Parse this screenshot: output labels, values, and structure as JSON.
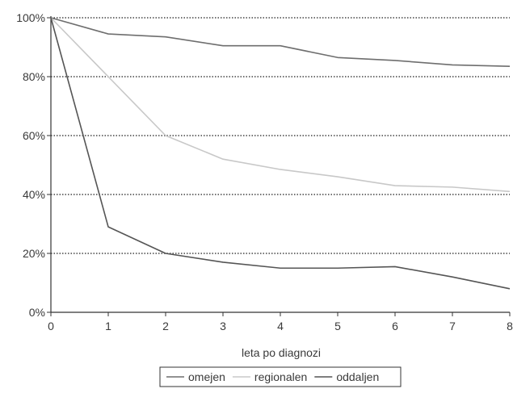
{
  "chart_data": {
    "type": "line",
    "title": "",
    "xlabel": "leta po diagnozi",
    "ylabel": "",
    "x": [
      0,
      1,
      2,
      3,
      4,
      5,
      6,
      7,
      8
    ],
    "xlim": [
      0,
      8
    ],
    "ylim": [
      0,
      100
    ],
    "y_ticks": [
      0,
      20,
      40,
      60,
      80,
      100
    ],
    "y_tick_labels": [
      "0%",
      "20%",
      "40%",
      "60%",
      "80%",
      "100%"
    ],
    "x_tick_labels": [
      "0",
      "1",
      "2",
      "3",
      "4",
      "5",
      "6",
      "7",
      "8"
    ],
    "grid": "horizontal dotted",
    "legend_position": "bottom",
    "series": [
      {
        "name": "omejen",
        "color": "#6e6e6e",
        "values": [
          100,
          94.5,
          93.5,
          90.5,
          90.5,
          86.5,
          85.5,
          84,
          83.5
        ]
      },
      {
        "name": "regionalen",
        "color": "#c8c8c8",
        "values": [
          100,
          80,
          60,
          52,
          48.5,
          46,
          43,
          42.5,
          41
        ]
      },
      {
        "name": "oddaljen",
        "color": "#555555",
        "values": [
          100,
          29,
          20,
          17,
          15,
          15,
          15.5,
          12,
          8
        ]
      }
    ]
  }
}
